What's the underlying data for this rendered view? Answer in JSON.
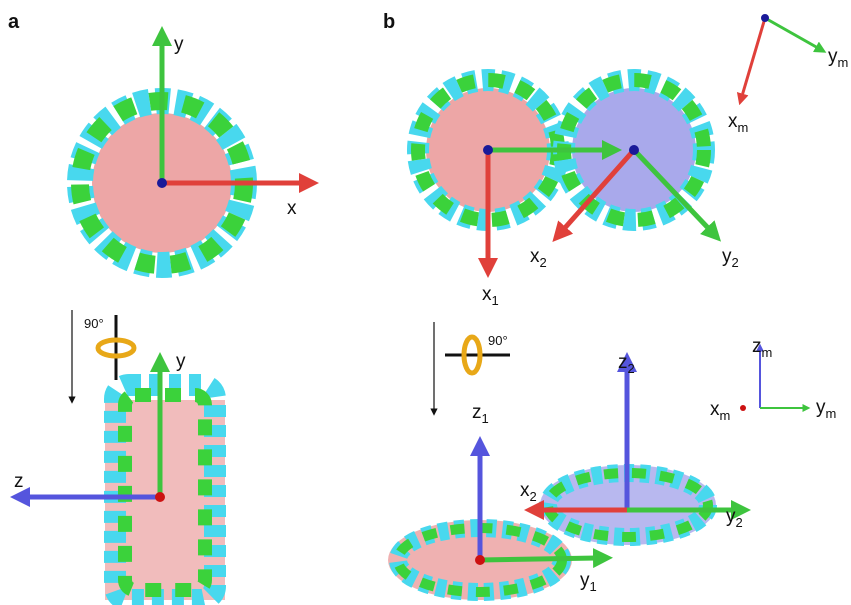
{
  "panel_a": {
    "label": "a",
    "top_axes": [
      {
        "text": "y"
      },
      {
        "text": "x"
      }
    ],
    "rotation": "90°",
    "bottom_axes": [
      {
        "text": "y"
      },
      {
        "text": "z"
      }
    ]
  },
  "panel_b": {
    "label": "b",
    "frame_top": [
      {
        "text": "x",
        "sub": "m"
      },
      {
        "text": "y",
        "sub": "m"
      }
    ],
    "top_axes": [
      {
        "text": "x",
        "sub": "1"
      },
      {
        "text": "x",
        "sub": "2"
      },
      {
        "text": "y",
        "sub": "2"
      }
    ],
    "rotation": "90°",
    "frame_bottom": [
      {
        "text": "z",
        "sub": "m"
      },
      {
        "text": "x",
        "sub": "m"
      },
      {
        "text": "y",
        "sub": "m"
      }
    ],
    "bottom_axes": [
      {
        "text": "z",
        "sub": "1"
      },
      {
        "text": "z",
        "sub": "2"
      },
      {
        "text": "x",
        "sub": "2"
      },
      {
        "text": "y",
        "sub": "2"
      },
      {
        "text": "y",
        "sub": "1"
      }
    ]
  }
}
